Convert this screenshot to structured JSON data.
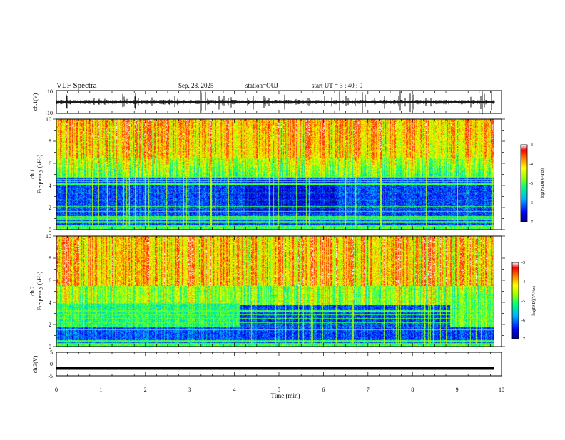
{
  "header": {
    "title": "VLF Spectra",
    "date": "Sep. 28, 2025",
    "station": "station=OUJ",
    "start_time": "start  UT =   3  : 40 : 0"
  },
  "chart_data": [
    {
      "type": "line",
      "name": "ch1-waveform",
      "ylabel": "ch.1(V)",
      "ylim": [
        -10,
        10
      ],
      "yticks": [
        "10",
        "-10"
      ],
      "xlim": [
        0,
        10
      ],
      "baseline": 0
    },
    {
      "type": "heatmap",
      "name": "ch1-spectrogram",
      "ylabel": "ch.1\nFrequency  (kHz)",
      "ylabel_line1": "ch.1",
      "ylabel_line2": "Frequency  (kHz)",
      "ylim": [
        0,
        10
      ],
      "yticks": [
        "0",
        "2",
        "4",
        "6",
        "8",
        "10"
      ],
      "xlim": [
        0,
        10
      ],
      "data_end_min": 9.8,
      "colorbar": {
        "label": "log(PSD)(V²/Hz)",
        "range": [
          -7,
          -3
        ],
        "ticks": [
          "-3",
          "-4",
          "-5",
          "-6",
          "-7"
        ]
      }
    },
    {
      "type": "heatmap",
      "name": "ch2-spectrogram",
      "ylabel": "ch.2\nFrequency  (kHz)",
      "ylabel_line1": "ch.2",
      "ylabel_line2": "Frequency  (kHz)",
      "ylim": [
        0,
        10
      ],
      "yticks": [
        "0",
        "2",
        "4",
        "6",
        "8",
        "10"
      ],
      "xlim": [
        0,
        10
      ],
      "data_end_min": 9.8,
      "colorbar": {
        "label": "log(PSD)(V²/Hz)",
        "range": [
          -7,
          -3
        ],
        "ticks": [
          "-3",
          "-4",
          "-5",
          "-6",
          "-7"
        ]
      }
    },
    {
      "type": "line",
      "name": "ch3-waveform",
      "ylabel": "ch.3(V)",
      "ylim": [
        -5,
        5
      ],
      "yticks": [
        "5",
        "0",
        "-5"
      ],
      "xlim": [
        0,
        10
      ],
      "baseline": -1.8,
      "xlabel": "Time  (min)",
      "xticks": [
        "0",
        "1",
        "2",
        "3",
        "4",
        "5",
        "6",
        "7",
        "8",
        "9",
        "10"
      ]
    }
  ],
  "colors": {
    "scale": [
      "#00008b",
      "#0000ff",
      "#0060ff",
      "#00d0ff",
      "#00ff80",
      "#80ff00",
      "#ffff00",
      "#ff8000",
      "#ff0000",
      "#ffffff"
    ]
  }
}
